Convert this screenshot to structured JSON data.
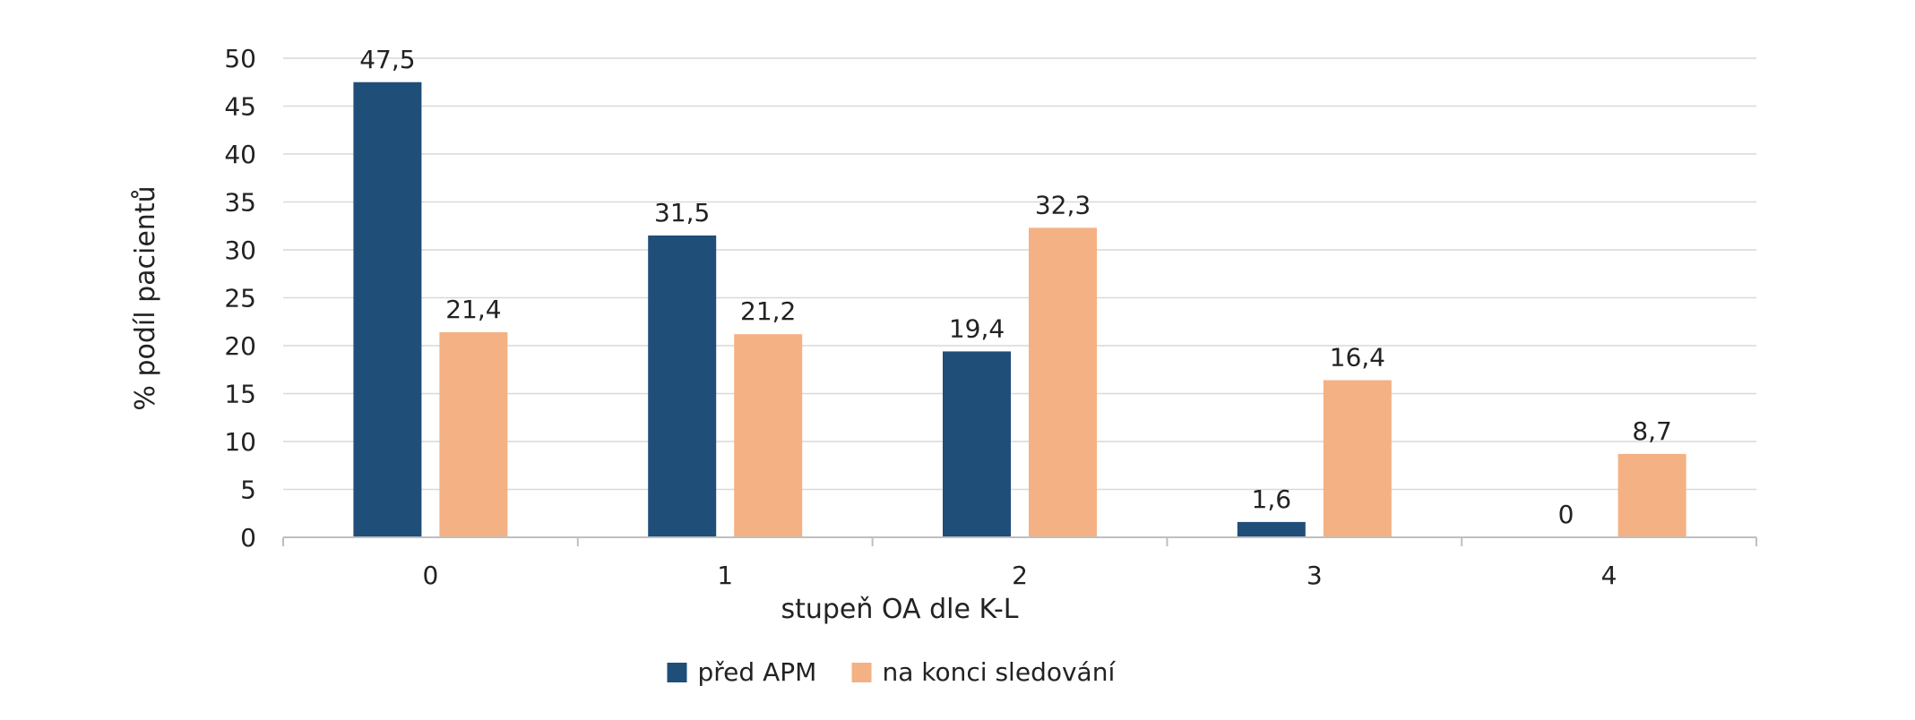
{
  "chart_data": {
    "type": "bar",
    "categories": [
      "0",
      "1",
      "2",
      "3",
      "4"
    ],
    "series": [
      {
        "name": "před APM",
        "values": [
          47.5,
          31.5,
          19.4,
          1.6,
          0
        ],
        "labels": [
          "47,5",
          "31,5",
          "19,4",
          "1,6",
          "0"
        ],
        "color": "#1f4e79"
      },
      {
        "name": "na konci sledování",
        "values": [
          21.4,
          21.2,
          32.3,
          16.4,
          8.7
        ],
        "labels": [
          "21,4",
          "21,2",
          "32,3",
          "16,4",
          "8,7"
        ],
        "color": "#f4b183"
      }
    ],
    "xlabel": "stupeň OA dle K-L",
    "ylabel": "% podíl pacientů",
    "ylim": [
      0,
      50
    ],
    "yticks": [
      "0",
      "5",
      "10",
      "15",
      "20",
      "25",
      "30",
      "35",
      "40",
      "45",
      "50"
    ],
    "grid": true,
    "legend_position": "bottom"
  }
}
